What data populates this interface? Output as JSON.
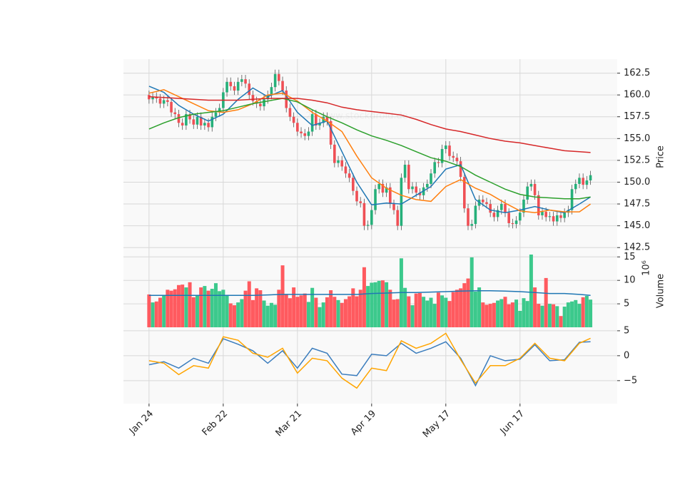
{
  "chart_data": [
    {
      "type": "candlestick",
      "watermark": "24 www.stockdroid.de",
      "ylabel": "Price",
      "up_color": "#26b07a",
      "down_color": "#ef4f55",
      "wick_color": "#555555",
      "open": [
        160.0,
        159.5,
        159.8,
        159.6,
        159.0,
        159.4,
        159.2,
        158.0,
        157.8,
        156.8,
        156.5,
        157.8,
        157.2,
        156.6,
        157.5,
        156.5,
        156.8,
        156.3,
        157.5,
        158.0,
        158.5,
        160.3,
        161.5,
        161.0,
        160.5,
        161.5,
        161.8,
        161.3,
        160.0,
        159.3,
        159.0,
        158.7,
        159.5,
        160.0,
        160.9,
        162.4,
        161.6,
        160.5,
        158.5,
        157.5,
        156.8,
        155.8,
        155.6,
        155.3,
        155.8,
        157.8,
        156.5,
        156.8,
        157.5,
        157.0,
        154.3,
        152.2,
        152.5,
        151.8,
        151.0,
        150.5,
        149.0,
        147.8,
        147.6,
        145.0,
        145.1,
        146.8,
        149.2,
        149.8,
        148.8,
        149.4,
        147.5,
        146.8,
        145.0,
        150.5,
        152.0,
        149.2,
        149.5,
        148.8,
        148.5,
        149.4,
        149.8,
        151.0,
        152.3,
        152.2,
        153.8,
        154.2,
        153.0,
        152.8,
        152.4,
        150.6,
        147.0,
        145.0,
        145.2,
        147.3,
        148.0,
        147.7,
        147.5,
        146.5,
        146.0,
        146.8,
        147.5,
        146.5,
        145.3,
        145.2,
        145.6,
        146.5,
        148.0,
        149.5,
        149.8,
        148.5,
        146.2,
        146.6,
        146.0,
        146.1,
        145.5,
        146.2,
        145.9,
        146.5,
        146.8,
        149.2,
        149.8,
        150.5,
        149.7,
        150.2
      ],
      "high": [
        160.5,
        160.3,
        160.3,
        160.1,
        159.9,
        159.9,
        159.7,
        158.5,
        158.3,
        157.3,
        158.3,
        158.3,
        157.7,
        158.0,
        158.0,
        157.3,
        157.3,
        158.0,
        158.5,
        159.0,
        160.8,
        162.0,
        162.0,
        161.5,
        162.0,
        162.3,
        162.3,
        161.8,
        160.5,
        159.8,
        159.5,
        160.0,
        160.5,
        161.4,
        162.9,
        162.9,
        162.1,
        161.0,
        159.0,
        158.0,
        157.3,
        156.3,
        156.1,
        156.3,
        158.3,
        158.3,
        157.3,
        158.0,
        158.0,
        157.5,
        154.8,
        153.0,
        153.0,
        152.3,
        151.5,
        151.0,
        149.5,
        148.3,
        148.1,
        145.6,
        147.3,
        149.7,
        150.3,
        150.3,
        149.9,
        149.9,
        148.0,
        147.3,
        151.0,
        152.5,
        152.5,
        150.0,
        150.0,
        149.3,
        149.9,
        150.3,
        151.5,
        152.8,
        152.8,
        154.3,
        154.7,
        154.7,
        153.5,
        153.3,
        152.9,
        151.1,
        147.5,
        145.7,
        147.8,
        148.5,
        148.5,
        148.2,
        148.0,
        147.0,
        147.3,
        148.0,
        148.0,
        147.0,
        145.8,
        146.1,
        147.0,
        148.5,
        150.0,
        150.3,
        150.3,
        149.0,
        147.1,
        147.1,
        146.6,
        146.6,
        146.7,
        146.7,
        147.0,
        147.3,
        149.7,
        150.3,
        151.0,
        151.0,
        150.7,
        151.3
      ],
      "low": [
        159.0,
        159.0,
        159.1,
        158.5,
        158.5,
        158.7,
        157.5,
        157.3,
        156.3,
        156.0,
        156.0,
        156.7,
        156.1,
        156.1,
        156.0,
        156.0,
        155.8,
        155.8,
        157.0,
        157.5,
        158.0,
        159.8,
        160.5,
        160.0,
        160.0,
        161.0,
        160.8,
        159.5,
        158.8,
        158.5,
        158.2,
        158.2,
        159.0,
        159.5,
        160.4,
        161.1,
        160.0,
        158.0,
        157.0,
        156.3,
        155.3,
        155.1,
        154.8,
        154.8,
        155.3,
        156.0,
        156.0,
        156.3,
        156.5,
        153.8,
        151.7,
        151.7,
        151.3,
        150.5,
        150.0,
        148.5,
        147.3,
        147.1,
        144.5,
        144.5,
        144.6,
        146.3,
        148.7,
        148.3,
        148.3,
        147.0,
        146.3,
        144.5,
        144.5,
        150.0,
        148.7,
        148.7,
        148.3,
        148.0,
        148.0,
        148.9,
        149.3,
        150.5,
        151.7,
        151.7,
        153.3,
        152.5,
        152.3,
        151.9,
        150.1,
        146.5,
        144.5,
        144.5,
        144.7,
        146.8,
        147.2,
        147.0,
        146.0,
        145.5,
        145.5,
        146.3,
        146.0,
        144.8,
        144.7,
        144.7,
        145.1,
        146.0,
        147.5,
        149.0,
        148.0,
        145.7,
        145.7,
        145.5,
        145.5,
        145.0,
        145.0,
        145.4,
        145.4,
        146.0,
        146.3,
        148.7,
        149.3,
        149.2,
        149.2,
        149.7
      ],
      "close": [
        159.5,
        159.8,
        159.6,
        159.0,
        159.4,
        159.2,
        158.0,
        157.8,
        156.8,
        156.5,
        157.8,
        157.2,
        156.6,
        157.5,
        156.5,
        156.8,
        156.3,
        157.5,
        158.0,
        158.5,
        160.3,
        161.5,
        161.0,
        160.5,
        161.5,
        161.8,
        161.3,
        160.0,
        159.3,
        159.0,
        158.7,
        159.5,
        160.0,
        160.9,
        162.4,
        161.6,
        160.5,
        158.5,
        157.5,
        156.8,
        155.8,
        155.6,
        155.3,
        155.8,
        157.8,
        156.5,
        156.8,
        157.5,
        157.0,
        154.3,
        152.2,
        152.5,
        151.8,
        151.0,
        150.5,
        149.0,
        147.8,
        147.6,
        145.0,
        145.1,
        146.8,
        149.2,
        149.8,
        148.8,
        149.4,
        147.5,
        146.8,
        145.0,
        150.5,
        152.0,
        149.2,
        149.5,
        148.8,
        148.5,
        149.4,
        149.8,
        151.0,
        152.3,
        152.2,
        153.8,
        154.2,
        153.0,
        152.8,
        152.4,
        150.6,
        147.0,
        145.0,
        145.2,
        147.3,
        148.0,
        147.7,
        147.5,
        146.5,
        146.0,
        146.8,
        147.5,
        146.5,
        145.3,
        145.2,
        145.6,
        146.5,
        148.0,
        149.5,
        149.8,
        148.5,
        146.2,
        146.6,
        146.0,
        146.1,
        145.5,
        146.2,
        145.9,
        146.5,
        146.8,
        149.2,
        149.8,
        150.5,
        149.7,
        150.2,
        150.8
      ],
      "series": [
        {
          "color": "#1f77b4",
          "x": [
            0,
            4,
            8,
            12,
            16,
            20,
            24,
            28,
            32,
            36,
            40,
            44,
            48,
            52,
            56,
            60,
            64,
            68,
            72,
            76,
            80,
            84,
            88,
            92,
            96,
            100,
            104,
            108,
            112,
            116,
            119
          ],
          "values": [
            161.0,
            160.3,
            158.8,
            157.8,
            157.0,
            157.8,
            159.5,
            160.8,
            159.8,
            160.5,
            158.0,
            156.5,
            157.0,
            153.5,
            150.0,
            147.4,
            147.6,
            147.5,
            148.5,
            149.5,
            151.5,
            152.0,
            148.0,
            146.8,
            146.5,
            146.8,
            147.2,
            146.8,
            146.5,
            147.5,
            148.3
          ]
        },
        {
          "color": "#ff7f0e",
          "x": [
            0,
            4,
            8,
            12,
            16,
            20,
            24,
            28,
            32,
            36,
            40,
            44,
            48,
            52,
            56,
            60,
            64,
            68,
            72,
            76,
            80,
            84,
            88,
            92,
            96,
            100,
            104,
            108,
            112,
            116,
            119
          ],
          "values": [
            160.2,
            160.6,
            159.8,
            159.0,
            158.2,
            158.0,
            158.3,
            159.0,
            160.0,
            160.2,
            159.3,
            158.0,
            157.0,
            155.8,
            153.0,
            150.5,
            149.3,
            148.5,
            148.0,
            147.8,
            149.5,
            150.3,
            149.3,
            148.6,
            147.6,
            146.7,
            146.5,
            146.8,
            146.6,
            146.6,
            147.5
          ]
        },
        {
          "color": "#2ca02c",
          "x": [
            0,
            4,
            8,
            12,
            16,
            20,
            24,
            28,
            32,
            36,
            40,
            44,
            48,
            52,
            56,
            60,
            64,
            68,
            72,
            76,
            80,
            84,
            88,
            92,
            96,
            100,
            104,
            108,
            112,
            116,
            119
          ],
          "values": [
            156.1,
            156.8,
            157.4,
            157.8,
            158.0,
            158.2,
            158.6,
            159.0,
            159.3,
            159.6,
            159.2,
            158.3,
            157.5,
            156.8,
            156.0,
            155.3,
            154.8,
            154.2,
            153.5,
            152.8,
            152.4,
            151.8,
            150.8,
            150.0,
            149.2,
            148.6,
            148.3,
            148.2,
            148.1,
            148.1,
            148.3
          ]
        },
        {
          "color": "#d62728",
          "x": [
            0,
            4,
            8,
            12,
            16,
            20,
            24,
            28,
            32,
            36,
            40,
            44,
            48,
            52,
            56,
            60,
            64,
            68,
            72,
            76,
            80,
            84,
            88,
            92,
            96,
            100,
            104,
            108,
            112,
            116,
            119
          ],
          "values": [
            159.8,
            159.7,
            159.6,
            159.5,
            159.4,
            159.4,
            159.4,
            159.5,
            159.6,
            159.6,
            159.6,
            159.4,
            159.1,
            158.6,
            158.3,
            158.1,
            157.9,
            157.7,
            157.2,
            156.6,
            156.1,
            155.8,
            155.4,
            155.0,
            154.7,
            154.5,
            154.2,
            153.9,
            153.6,
            153.5,
            153.4
          ]
        }
      ],
      "ylim": [
        141.7,
        164.1
      ],
      "yticks": [
        142.5,
        {
          "value": 145,
          "label": "145.0"
        },
        147.5,
        {
          "value": 150,
          "label": "150.0"
        },
        152.5,
        {
          "value": 155,
          "label": "155.0"
        },
        157.5,
        {
          "value": 160,
          "label": "160.0"
        },
        162.5
      ],
      "grid": true
    },
    {
      "type": "bar",
      "ylabel": "Volume",
      "unit": "10⁶",
      "up_color": "#3cc98c",
      "down_color": "#ff5a5f",
      "values": [
        7.0,
        5.3,
        5.5,
        6.3,
        6.8,
        8.0,
        7.8,
        8.1,
        9.0,
        9.1,
        8.5,
        9.6,
        6.4,
        6.9,
        8.5,
        8.8,
        7.8,
        8.2,
        9.4,
        7.7,
        8.0,
        6.8,
        5.1,
        4.7,
        5.3,
        6.0,
        7.8,
        9.8,
        5.8,
        8.3,
        7.9,
        5.7,
        4.6,
        5.2,
        4.8,
        8.0,
        13.2,
        7.0,
        6.2,
        8.5,
        6.5,
        6.8,
        7.2,
        5.4,
        8.4,
        6.3,
        4.3,
        5.3,
        6.4,
        7.9,
        6.5,
        5.8,
        5.2,
        6.0,
        6.6,
        8.3,
        6.6,
        8.0,
        12.8,
        8.8,
        9.5,
        9.6,
        9.9,
        10.0,
        9.6,
        8.0,
        5.9,
        6.0,
        14.7,
        8.4,
        6.6,
        4.7,
        7.2,
        7.3,
        6.5,
        5.7,
        6.3,
        5.0,
        7.4,
        6.8,
        6.3,
        5.6,
        7.5,
        8.0,
        8.3,
        9.4,
        10.4,
        14.9,
        7.6,
        8.5,
        5.3,
        4.8,
        5.0,
        5.2,
        5.7,
        6.0,
        6.5,
        4.9,
        5.3,
        5.9,
        3.5,
        6.2,
        5.6,
        15.5,
        8.5,
        5.0,
        4.6,
        10.5,
        5.0,
        4.9,
        4.5,
        2.4,
        4.4,
        5.3,
        5.5,
        5.8,
        5.0,
        6.4,
        6.7,
        5.9
      ],
      "series": [
        {
          "color": "#1f77b4",
          "x": [
            0,
            4,
            8,
            12,
            16,
            20,
            24,
            28,
            32,
            36,
            40,
            44,
            48,
            52,
            56,
            60,
            64,
            68,
            72,
            76,
            80,
            84,
            88,
            92,
            96,
            100,
            104,
            108,
            112,
            116,
            119
          ],
          "values": [
            6.8,
            6.8,
            6.8,
            6.8,
            6.8,
            6.8,
            6.8,
            6.8,
            6.9,
            7.0,
            7.0,
            7.0,
            7.0,
            7.0,
            7.0,
            7.2,
            7.3,
            7.4,
            7.4,
            7.5,
            7.6,
            7.7,
            7.8,
            7.8,
            7.7,
            7.6,
            7.4,
            7.2,
            7.2,
            7.0,
            6.8
          ]
        }
      ],
      "ylim": [
        0,
        15.5
      ],
      "yticks": [
        5,
        10,
        15
      ],
      "grid": true
    },
    {
      "type": "line",
      "series": [
        {
          "color": "#3b7dbd",
          "x": [
            0,
            4,
            8,
            12,
            16,
            20,
            24,
            28,
            32,
            36,
            40,
            44,
            48,
            52,
            56,
            60,
            64,
            68,
            72,
            76,
            80,
            84,
            88,
            92,
            96,
            100,
            104,
            108,
            112,
            116,
            119
          ],
          "values": [
            -1.8,
            -1.2,
            -2.5,
            -0.5,
            -1.5,
            3.4,
            2.3,
            1.0,
            -1.5,
            1.0,
            -2.5,
            1.5,
            0.5,
            -3.7,
            -4.0,
            0.3,
            0,
            2.5,
            0.5,
            1.5,
            2.8,
            -0.5,
            -6.0,
            0,
            -1.0,
            -0.7,
            2.2,
            -1.0,
            -0.8,
            2.7,
            2.8
          ]
        },
        {
          "color": "#ffa500",
          "x": [
            0,
            4,
            8,
            12,
            16,
            20,
            24,
            28,
            32,
            36,
            40,
            44,
            48,
            52,
            56,
            60,
            64,
            68,
            72,
            76,
            80,
            84,
            88,
            92,
            96,
            100,
            104,
            108,
            112,
            116,
            119
          ],
          "values": [
            -1.0,
            -1.5,
            -3.8,
            -2.0,
            -2.5,
            3.8,
            3.1,
            0.5,
            -0.3,
            1.5,
            -3.5,
            -0.5,
            -1.0,
            -4.5,
            -6.5,
            -2.5,
            -3.0,
            3.0,
            1.5,
            2.5,
            4.5,
            -0.8,
            -5.5,
            -2.0,
            -2.0,
            -0.5,
            2.5,
            -0.5,
            -1.0,
            2.5,
            3.5
          ]
        }
      ],
      "ylim": [
        -9.6,
        5.7
      ],
      "yticks": [
        {
          "value": -5,
          "label": "−5"
        },
        0,
        5
      ],
      "grid": true,
      "xlim": [
        -6.9,
        126.2
      ],
      "xticks": [
        {
          "value": 0,
          "label": "Jan 24"
        },
        {
          "value": 20,
          "label": "Feb 22"
        },
        {
          "value": 40,
          "label": "Mar 21"
        },
        {
          "value": 60,
          "label": "Apr 19"
        },
        {
          "value": 80,
          "label": "May 17"
        },
        {
          "value": 100,
          "label": "Jun 17"
        }
      ]
    }
  ]
}
